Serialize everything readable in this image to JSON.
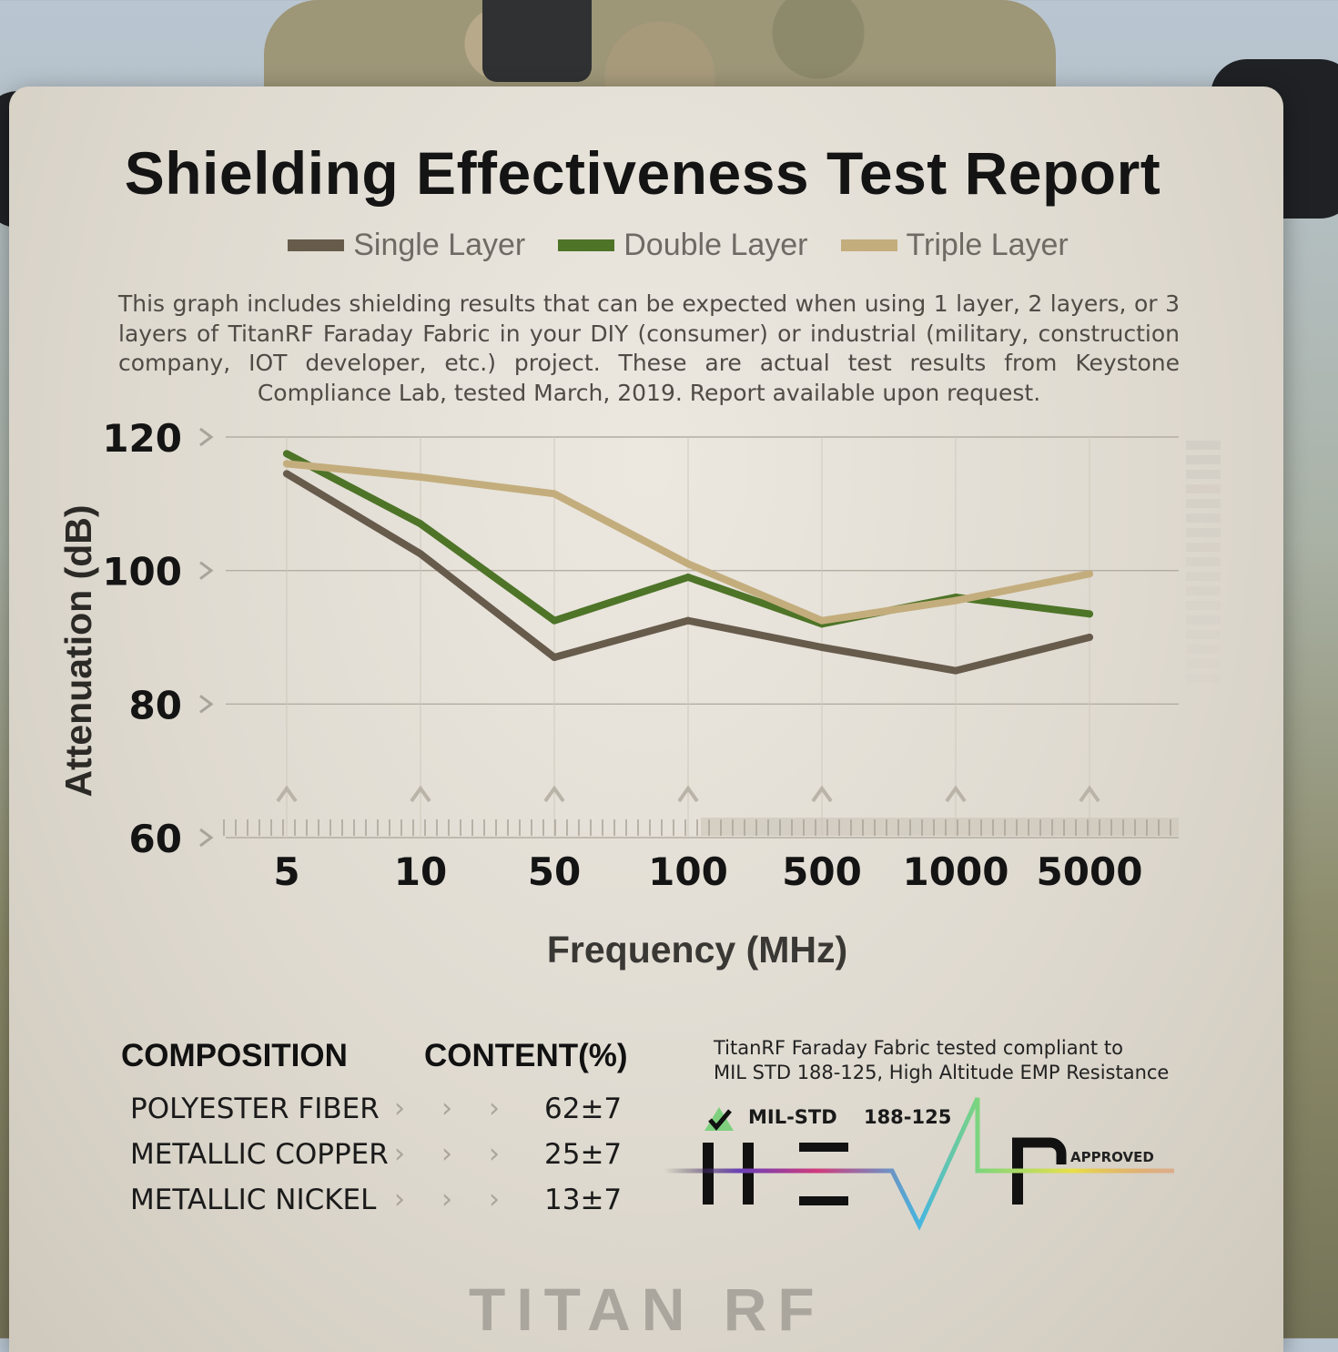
{
  "title": "Shielding Effectiveness Test Report",
  "description": "This graph includes shielding results that can be expected when using 1 layer, 2 layers, or 3 layers of TitanRF Faraday Fabric in your DIY (consumer) or industrial (military, construction company, IOT developer, etc.) project. These are actual test results from Keystone Compliance Lab, tested March, 2019. Report available upon request.",
  "chart_data": {
    "type": "line",
    "title": "Shielding Effectiveness Test Report",
    "xlabel": "Frequency (MHz)",
    "ylabel": "Attenuation (dB)",
    "categories": [
      "5",
      "10",
      "50",
      "100",
      "500",
      "1000",
      "5000"
    ],
    "yticks": [
      "120",
      "100",
      "80",
      "60"
    ],
    "ylim": [
      60,
      120
    ],
    "grid": true,
    "legend_position": "top",
    "series": [
      {
        "name": "Single Layer",
        "color": "#675b4c",
        "values": [
          114.5,
          102.5,
          87,
          92.5,
          88.5,
          85,
          90
        ]
      },
      {
        "name": "Double Layer",
        "color": "#4e7428",
        "values": [
          117.5,
          107,
          92.5,
          99,
          92,
          96,
          93.5
        ]
      },
      {
        "name": "Triple Layer",
        "color": "#c4ad7d",
        "values": [
          116,
          114,
          111.5,
          101,
          92.5,
          95.5,
          99.5
        ]
      }
    ]
  },
  "composition": {
    "header_name": "COMPOSITION",
    "header_content": "CONTENT(%)",
    "rows": [
      {
        "name": "POLYESTER FIBER",
        "value": "62±7"
      },
      {
        "name": "METALLIC COPPER",
        "value": "25±7"
      },
      {
        "name": "METALLIC NICKEL",
        "value": "13±7"
      }
    ]
  },
  "compliance": {
    "line1": "TitanRF Faraday Fabric tested compliant to",
    "line2": "MIL STD 188-125, High Altitude EMP Resistance",
    "badge_std": "MIL-STD",
    "badge_num": "188-125",
    "badge_mark": "HEMP",
    "badge_approved": "APPROVED"
  },
  "logo": "TITAN RF"
}
